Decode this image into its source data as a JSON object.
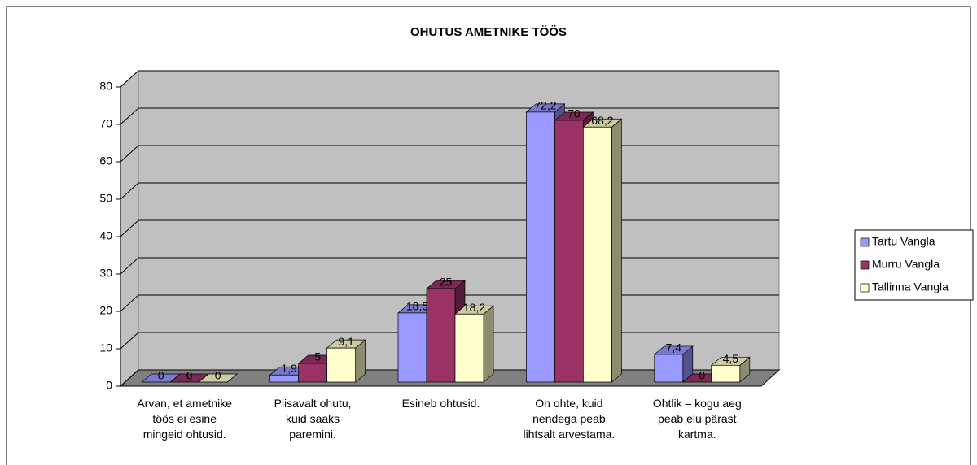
{
  "chart_data": {
    "type": "bar3d",
    "title": "OHUTUS AMETNIKE TÖÖS",
    "categories": [
      "Arvan, et ametnike töös ei esine mingeid ohtusid.",
      "Piisavalt ohutu, kuid saaks paremini.",
      "Esineb ohtusid.",
      "On ohte, kuid nendega peab lihtsalt arvestama.",
      "Ohtlik – kogu aeg peab elu pärast kartma."
    ],
    "series": [
      {
        "name": "Tartu Vangla",
        "color": "#9999ff",
        "values": [
          0,
          1.9,
          18.5,
          72.2,
          7.4
        ],
        "value_labels": [
          "0",
          "1,9",
          "18,5",
          "72,2",
          "7,4"
        ]
      },
      {
        "name": "Murru Vangla",
        "color": "#993366",
        "values": [
          0,
          5,
          25,
          70,
          0
        ],
        "value_labels": [
          "0",
          "5",
          "25",
          "70",
          "0"
        ]
      },
      {
        "name": "Tallinna Vangla",
        "color": "#ffffcc",
        "values": [
          0,
          9.1,
          18.2,
          68.2,
          4.5
        ],
        "value_labels": [
          "0",
          "9,1",
          "18,2",
          "68,2",
          "4,5"
        ]
      }
    ],
    "ylim": [
      0,
      80
    ],
    "yticks": [
      0,
      10,
      20,
      30,
      40,
      50,
      60,
      70,
      80
    ],
    "grid": true,
    "legend": "right"
  }
}
